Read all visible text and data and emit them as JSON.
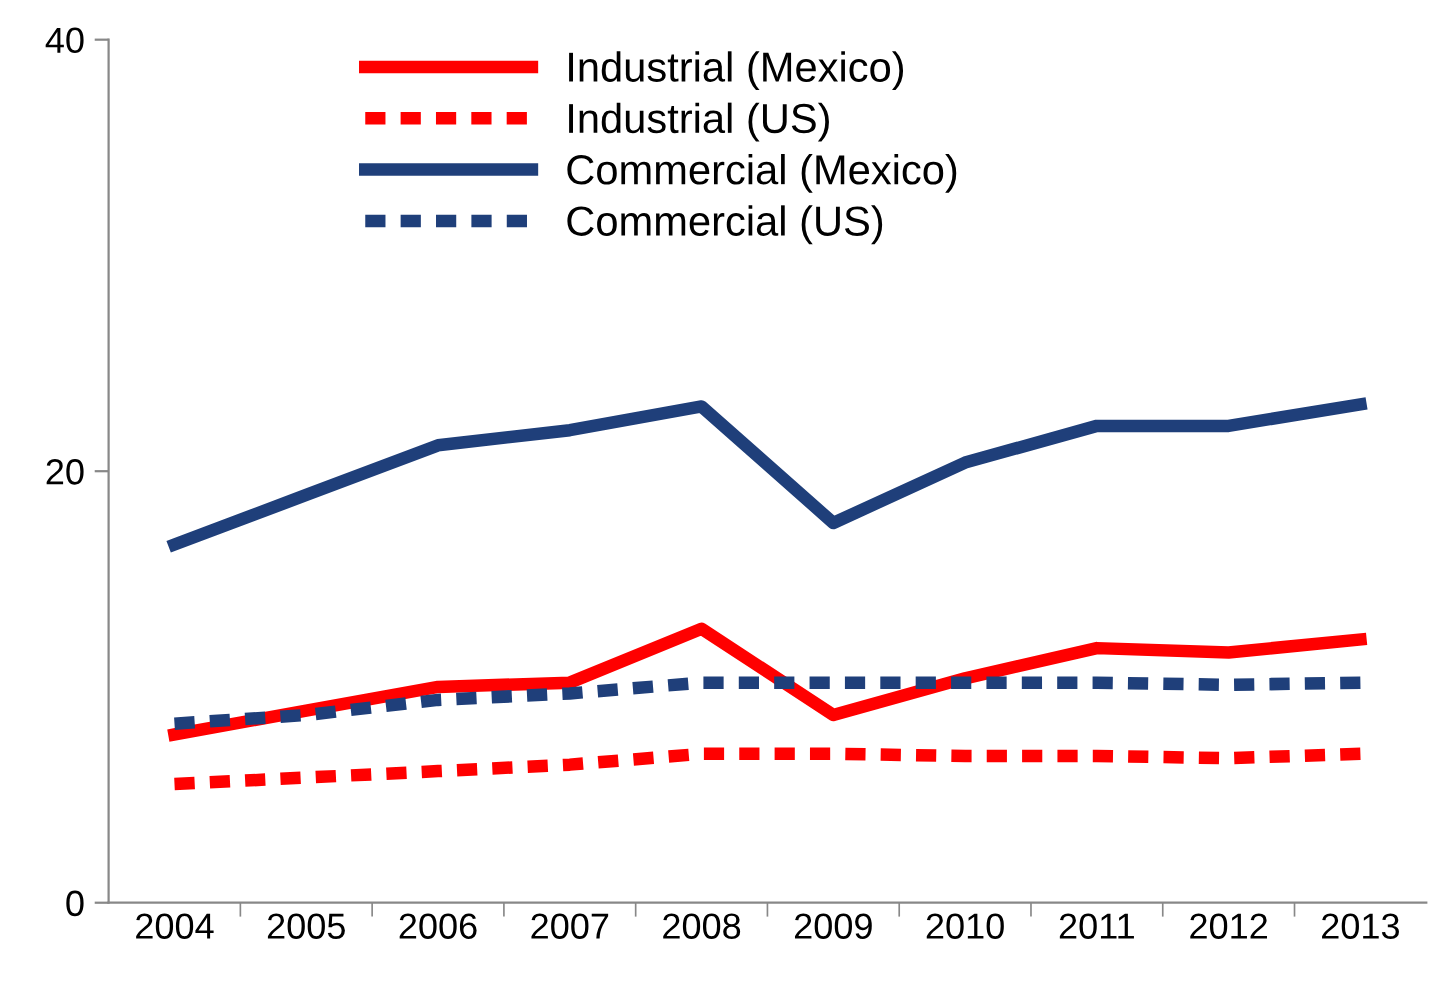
{
  "chart_data": {
    "type": "line",
    "categories": [
      "2004",
      "2005",
      "2006",
      "2007",
      "2008",
      "2009",
      "2010",
      "2011",
      "2012",
      "2013"
    ],
    "series": [
      {
        "name": "Industrial (Mexico)",
        "color": "#ff0000",
        "line_style": "solid",
        "values": [
          7.8,
          8.9,
          10.0,
          10.2,
          12.7,
          8.7,
          10.4,
          11.8,
          11.6,
          12.2
        ]
      },
      {
        "name": "Industrial (US)",
        "color": "#ff0000",
        "line_style": "dashed",
        "values": [
          5.5,
          5.8,
          6.1,
          6.4,
          6.9,
          6.9,
          6.8,
          6.8,
          6.7,
          6.9
        ]
      },
      {
        "name": "Commercial (Mexico)",
        "color": "#1f3f7a",
        "line_style": "solid",
        "values": [
          16.6,
          18.9,
          21.2,
          21.9,
          23.0,
          17.6,
          20.4,
          22.1,
          22.1,
          23.1
        ]
      },
      {
        "name": "Commercial (US)",
        "color": "#1f3f7a",
        "line_style": "dashed",
        "values": [
          8.3,
          8.7,
          9.4,
          9.7,
          10.2,
          10.2,
          10.2,
          10.2,
          10.1,
          10.2
        ]
      }
    ],
    "ylim": [
      0,
      40
    ],
    "yticks": [
      0,
      20,
      40
    ],
    "grid": false,
    "legend": "top",
    "marker": "none"
  }
}
